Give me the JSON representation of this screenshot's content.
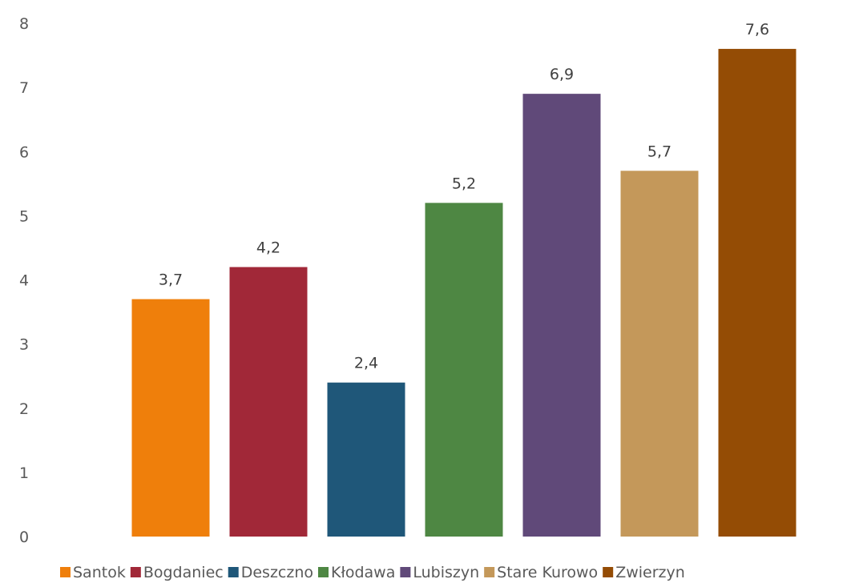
{
  "chart_data": {
    "type": "bar",
    "title": "",
    "xlabel": "",
    "ylabel": "",
    "categories": [
      "Santok",
      "Bogdaniec",
      "Deszczno",
      "Kłodawa",
      "Lubiszyn",
      "Stare Kurowo",
      "Zwierzyn"
    ],
    "series": [
      {
        "name": "Santok",
        "values": [
          3.7,
          null,
          null,
          null,
          null,
          null,
          null
        ],
        "label": "3,7",
        "color": "#EF7F0B"
      },
      {
        "name": "Bogdaniec",
        "values": [
          null,
          4.2,
          null,
          null,
          null,
          null,
          null
        ],
        "label": "4,2",
        "color": "#A12838"
      },
      {
        "name": "Deszczno",
        "values": [
          null,
          null,
          2.4,
          null,
          null,
          null,
          null
        ],
        "label": "2,4",
        "color": "#1F5779"
      },
      {
        "name": "Kłodawa",
        "values": [
          null,
          null,
          null,
          5.2,
          null,
          null,
          null
        ],
        "label": "5,2",
        "color": "#4E8743"
      },
      {
        "name": "Lubiszyn",
        "values": [
          null,
          null,
          null,
          null,
          6.9,
          null,
          null
        ],
        "label": "6,9",
        "color": "#604979"
      },
      {
        "name": "Stare Kurowo",
        "values": [
          null,
          null,
          null,
          null,
          null,
          5.7,
          null
        ],
        "label": "5,7",
        "color": "#C4985A"
      },
      {
        "name": "Zwierzyn",
        "values": [
          null,
          null,
          null,
          null,
          null,
          null,
          7.6
        ],
        "label": "7,6",
        "color": "#944C05"
      }
    ],
    "ylim": [
      0,
      8
    ],
    "yticks": [
      "0",
      "1",
      "2",
      "3",
      "4",
      "5",
      "6",
      "7",
      "8"
    ],
    "grid": false,
    "legend": "bottom"
  }
}
